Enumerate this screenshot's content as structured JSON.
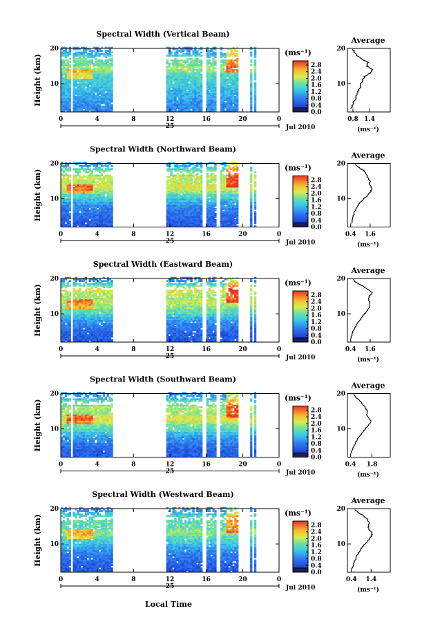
{
  "figure": {
    "xlabel_bottom": "Local Time",
    "day_label": "25",
    "month_label": "Jul 2010"
  },
  "chart_data": [
    {
      "type": "heatmap",
      "title": "Spectral Width (Vertical Beam)",
      "ylabel": "Height (km)",
      "y_ticks": [
        "20",
        "10"
      ],
      "x_ticks": [
        "0",
        "4",
        "8",
        "12",
        "16",
        "20",
        "0"
      ],
      "xlim": [
        0,
        24
      ],
      "ylim": [
        2,
        20
      ],
      "data_blocks_hours": [
        [
          0,
          5.6
        ],
        [
          11.6,
          19.4
        ],
        [
          20.6,
          21.4
        ]
      ],
      "colorbar": {
        "unit": "(ms⁻¹)",
        "ticks": [
          "2.8",
          "2.4",
          "2.0",
          "1.6",
          "1.2",
          "0.8",
          "0.4",
          "0.0"
        ],
        "range": [
          0,
          2.8
        ]
      },
      "profile": {
        "title": "Average",
        "xlabel": "(ms⁻¹)",
        "x_ticks": [
          "0.8",
          "1.4"
        ],
        "xlim": [
          0.6,
          1.6
        ],
        "y_ticks": [
          "20",
          "10"
        ],
        "heights_km": [
          3,
          4,
          5,
          6,
          7,
          8,
          9,
          10,
          11,
          12,
          13,
          14,
          15,
          16,
          17,
          18,
          19,
          20
        ],
        "values": [
          0.72,
          0.78,
          0.84,
          0.9,
          0.95,
          1.0,
          1.06,
          1.1,
          1.14,
          1.22,
          1.42,
          1.5,
          1.3,
          1.35,
          1.1,
          0.95,
          0.85,
          0.78
        ]
      }
    },
    {
      "type": "heatmap",
      "title": "Spectral Width (Northward Beam)",
      "ylabel": "Height (km)",
      "y_ticks": [
        "20",
        "10"
      ],
      "x_ticks": [
        "0",
        "4",
        "8",
        "12",
        "16",
        "20",
        "0"
      ],
      "xlim": [
        0,
        24
      ],
      "ylim": [
        2,
        20
      ],
      "data_blocks_hours": [
        [
          0,
          5.6
        ],
        [
          11.6,
          19.4
        ],
        [
          20.6,
          21.4
        ]
      ],
      "colorbar": {
        "unit": "(ms⁻¹)",
        "ticks": [
          "2.8",
          "2.4",
          "2.0",
          "1.6",
          "1.2",
          "0.8",
          "0.4",
          "0.0"
        ],
        "range": [
          0,
          2.8
        ]
      },
      "profile": {
        "title": "Average",
        "xlabel": "(ms⁻¹)",
        "x_ticks": [
          "0.4",
          "1.6"
        ],
        "xlim": [
          0.2,
          1.9
        ],
        "y_ticks": [
          "20",
          "10"
        ],
        "heights_km": [
          3,
          4,
          5,
          6,
          7,
          8,
          9,
          10,
          11,
          12,
          13,
          14,
          15,
          16,
          17,
          18,
          19,
          20
        ],
        "values": [
          0.45,
          0.5,
          0.55,
          0.62,
          0.72,
          0.85,
          1.0,
          1.2,
          1.45,
          1.62,
          1.7,
          1.55,
          1.6,
          1.45,
          1.35,
          1.2,
          0.85,
          0.6
        ]
      }
    },
    {
      "type": "heatmap",
      "title": "Spectral Width (Eastward Beam)",
      "ylabel": "Height (km)",
      "y_ticks": [
        "20",
        "10"
      ],
      "x_ticks": [
        "0",
        "4",
        "8",
        "12",
        "16",
        "20",
        "0"
      ],
      "xlim": [
        0,
        24
      ],
      "ylim": [
        2,
        20
      ],
      "data_blocks_hours": [
        [
          0,
          5.6
        ],
        [
          11.6,
          19.4
        ],
        [
          20.6,
          21.4
        ]
      ],
      "colorbar": {
        "unit": "(ms⁻¹)",
        "ticks": [
          "2.8",
          "2.4",
          "2.0",
          "1.6",
          "1.2",
          "0.8",
          "0.4",
          "0.0"
        ],
        "range": [
          0,
          2.8
        ]
      },
      "profile": {
        "title": "Average",
        "xlabel": "(ms⁻¹)",
        "x_ticks": [
          "0.4",
          "1.6"
        ],
        "xlim": [
          0.2,
          1.9
        ],
        "y_ticks": [
          "20",
          "10"
        ],
        "heights_km": [
          3,
          4,
          5,
          6,
          7,
          8,
          9,
          10,
          11,
          12,
          13,
          14,
          15,
          16,
          17,
          18,
          19,
          20
        ],
        "values": [
          0.42,
          0.48,
          0.55,
          0.65,
          0.78,
          0.92,
          1.08,
          1.25,
          1.42,
          1.55,
          1.6,
          1.5,
          1.55,
          1.75,
          1.4,
          1.1,
          0.7,
          0.5
        ]
      }
    },
    {
      "type": "heatmap",
      "title": "Spectral Width (Southward Beam)",
      "ylabel": "Height (km)",
      "y_ticks": [
        "20",
        "10"
      ],
      "x_ticks": [
        "0",
        "4",
        "8",
        "12",
        "16",
        "20",
        "0"
      ],
      "xlim": [
        0,
        24
      ],
      "ylim": [
        2,
        20
      ],
      "data_blocks_hours": [
        [
          0,
          5.6
        ],
        [
          11.6,
          19.4
        ],
        [
          20.6,
          21.4
        ]
      ],
      "colorbar": {
        "unit": "(ms⁻¹)",
        "ticks": [
          "2.8",
          "2.4",
          "2.0",
          "1.6",
          "1.2",
          "0.8",
          "0.4",
          "0.0"
        ],
        "range": [
          0,
          2.8
        ]
      },
      "profile": {
        "title": "Average",
        "xlabel": "(ms⁻¹)",
        "x_ticks": [
          "0.4",
          "1.8"
        ],
        "xlim": [
          0.2,
          2.0
        ],
        "y_ticks": [
          "20",
          "10"
        ],
        "heights_km": [
          3,
          4,
          5,
          6,
          7,
          8,
          9,
          10,
          11,
          12,
          13,
          14,
          15,
          16,
          17,
          18,
          19,
          20
        ],
        "values": [
          0.45,
          0.52,
          0.6,
          0.72,
          0.85,
          1.0,
          1.18,
          1.35,
          1.55,
          1.75,
          1.6,
          1.45,
          1.5,
          1.35,
          1.2,
          1.0,
          0.75,
          0.55
        ]
      }
    },
    {
      "type": "heatmap",
      "title": "Spectral Width (Westward Beam)",
      "ylabel": "Height (km)",
      "y_ticks": [
        "20",
        "10"
      ],
      "x_ticks": [
        "0",
        "4",
        "8",
        "12",
        "16",
        "20",
        "0"
      ],
      "xlim": [
        0,
        24
      ],
      "ylim": [
        2,
        20
      ],
      "data_blocks_hours": [
        [
          0,
          5.6
        ],
        [
          11.6,
          19.4
        ],
        [
          20.6,
          21.4
        ]
      ],
      "colorbar": {
        "unit": "(ms⁻¹)",
        "ticks": [
          "2.8",
          "2.4",
          "2.0",
          "1.6",
          "1.2",
          "0.8",
          "0.4",
          "0.0"
        ],
        "range": [
          0,
          2.8
        ]
      },
      "profile": {
        "title": "Average",
        "xlabel": "(ms⁻¹)",
        "x_ticks": [
          "0.4",
          "1.4"
        ],
        "xlim": [
          0.2,
          1.6
        ],
        "y_ticks": [
          "20",
          "10"
        ],
        "heights_km": [
          3,
          4,
          5,
          6,
          7,
          8,
          9,
          10,
          11,
          12,
          13,
          14,
          15,
          16,
          17,
          18,
          19,
          20
        ],
        "values": [
          0.42,
          0.48,
          0.55,
          0.62,
          0.72,
          0.82,
          0.95,
          1.1,
          1.25,
          1.4,
          1.45,
          1.3,
          1.25,
          1.3,
          1.2,
          1.0,
          0.75,
          0.5
        ]
      }
    }
  ]
}
